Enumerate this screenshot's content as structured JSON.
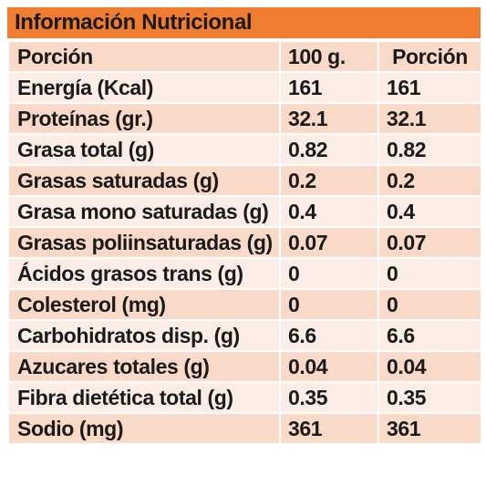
{
  "table": {
    "title": "Información Nutricional",
    "header": [
      "Porción",
      "100 g.",
      "Porción"
    ],
    "rows": [
      [
        "Energía (Kcal)",
        "161",
        "161"
      ],
      [
        "Proteínas (gr.)",
        "32.1",
        "32.1"
      ],
      [
        "Grasa total (g)",
        "0.82",
        "0.82"
      ],
      [
        "Grasas saturadas (g)",
        "0.2",
        "0.2"
      ],
      [
        "Grasa mono saturadas (g)",
        "0.4",
        "0.4"
      ],
      [
        "Grasas poliinsaturadas (g)",
        "0.07",
        "0.07"
      ],
      [
        "Ácidos grasos trans (g)",
        "0",
        "0"
      ],
      [
        "Colesterol (mg)",
        "0",
        "0"
      ],
      [
        "Carbohidratos disp. (g)",
        "6.6",
        "6.6"
      ],
      [
        "Azucares totales (g)",
        "0.04",
        "0.04"
      ],
      [
        "Fibra dietética total (g)",
        "0.35",
        "0.35"
      ],
      [
        "Sodio (mg)",
        "361",
        "361"
      ]
    ]
  },
  "colors": {
    "title_bg": "#f07d2f",
    "row_dark": "#f9d9c8",
    "row_light": "#fcede6"
  }
}
